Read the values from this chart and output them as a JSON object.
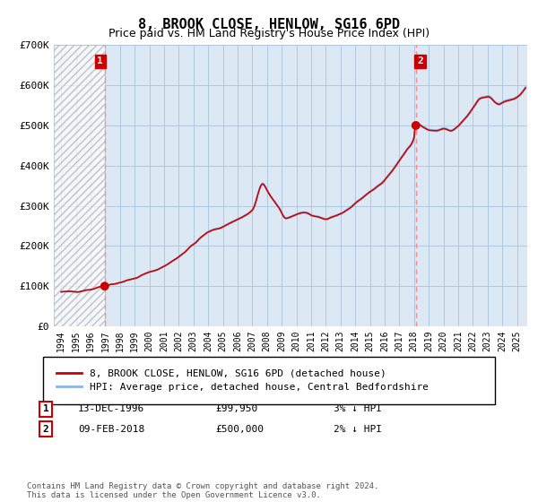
{
  "title": "8, BROOK CLOSE, HENLOW, SG16 6PD",
  "subtitle": "Price paid vs. HM Land Registry's House Price Index (HPI)",
  "ylim": [
    0,
    700000
  ],
  "yticks": [
    0,
    100000,
    200000,
    300000,
    400000,
    500000,
    600000,
    700000
  ],
  "ytick_labels": [
    "£0",
    "£100K",
    "£200K",
    "£300K",
    "£400K",
    "£500K",
    "£600K",
    "£700K"
  ],
  "hpi_color": "#8ab4e8",
  "price_color": "#cc0000",
  "marker_color": "#cc0000",
  "vline_color": "#ff8888",
  "annotation_box_color": "#cc0000",
  "background_color": "#ffffff",
  "plot_bg_color": "#dce9f5",
  "grid_color": "#b0c8e0",
  "legend_label_price": "8, BROOK CLOSE, HENLOW, SG16 6PD (detached house)",
  "legend_label_hpi": "HPI: Average price, detached house, Central Bedfordshire",
  "annotation1_label": "1",
  "annotation1_date": "13-DEC-1996",
  "annotation1_price": "£99,950",
  "annotation1_note": "3% ↓ HPI",
  "annotation2_label": "2",
  "annotation2_date": "09-FEB-2018",
  "annotation2_price": "£500,000",
  "annotation2_note": "2% ↓ HPI",
  "footer": "Contains HM Land Registry data © Crown copyright and database right 2024.\nThis data is licensed under the Open Government Licence v3.0.",
  "sale1_year": 1996.96,
  "sale1_value": 99950,
  "sale2_year": 2018.12,
  "sale2_value": 500000,
  "xlim_min": 1993.5,
  "xlim_max": 2025.7
}
